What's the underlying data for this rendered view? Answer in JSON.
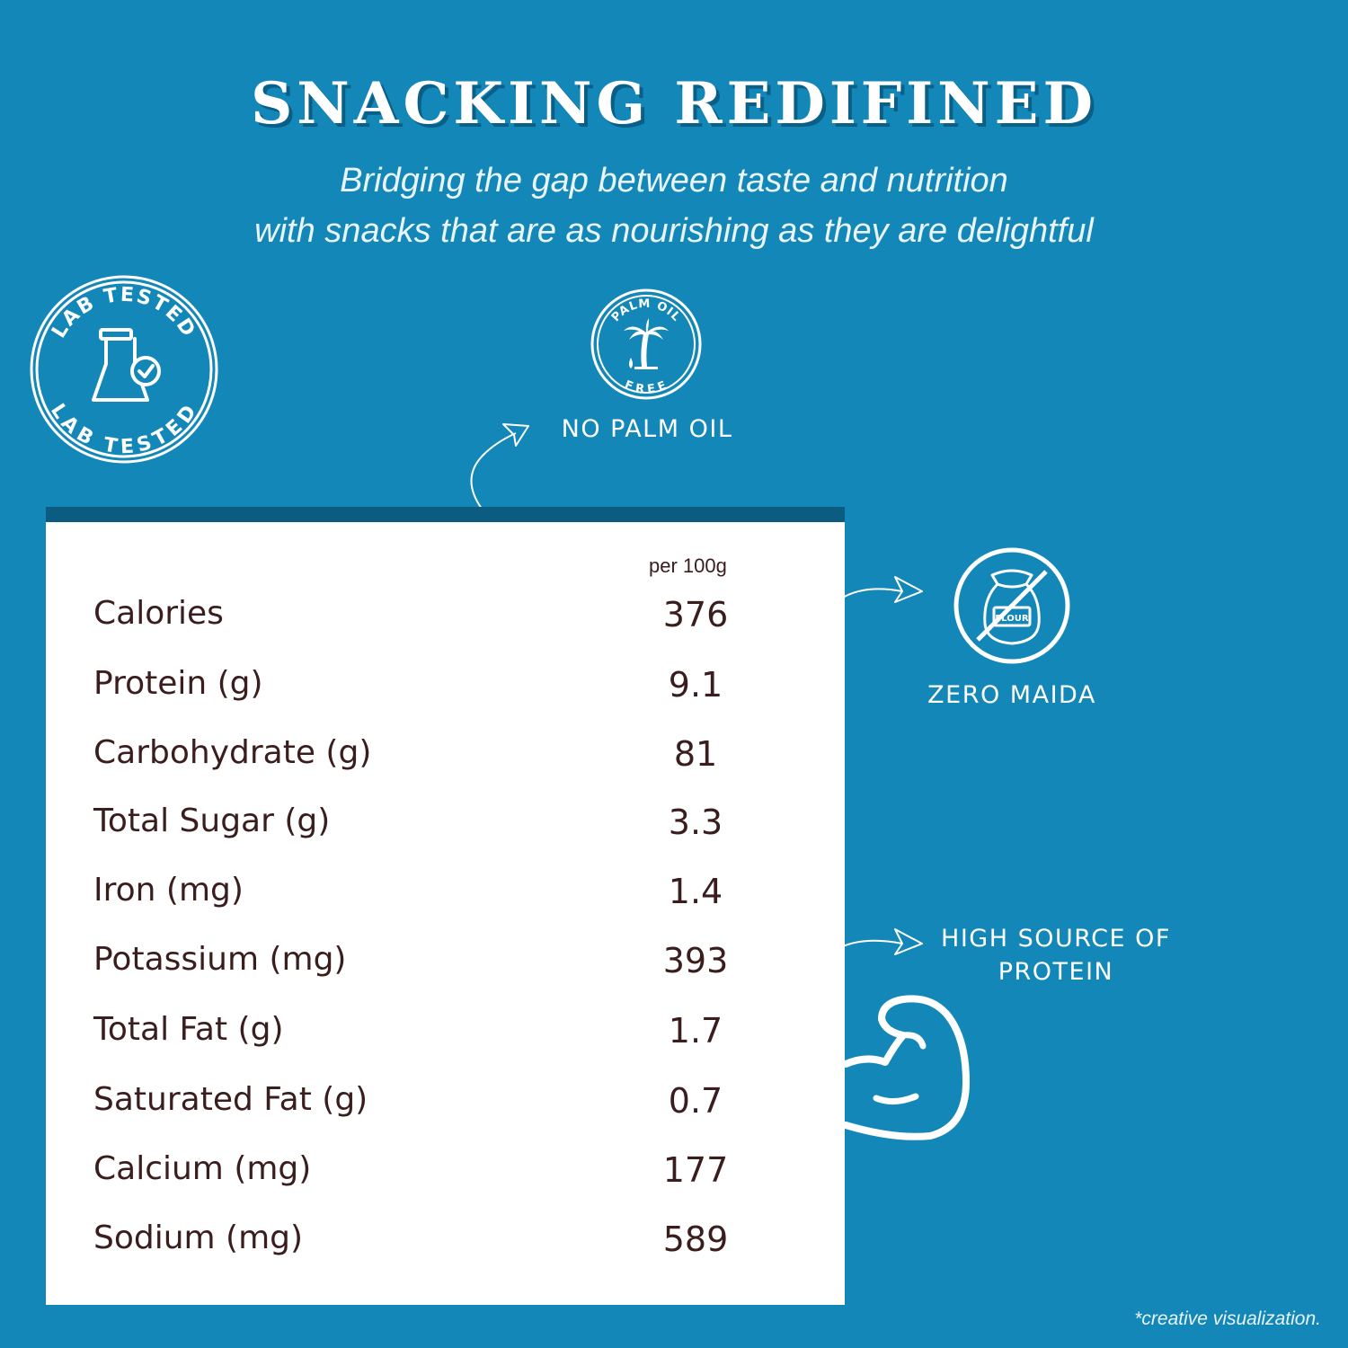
{
  "header": {
    "title": "SNACKING REDIFINED",
    "subtitle_line1": "Bridging the gap between taste and nutrition",
    "subtitle_line2": "with snacks that are as nourishing as they are delightful"
  },
  "badges": {
    "lab_tested": {
      "text": "LAB TESTED",
      "icon": "lab-flask-check-icon"
    },
    "palm_oil": {
      "top_text": "PALM OIL",
      "bottom_text": "FREE",
      "icon": "palm-tree-icon"
    },
    "flour": {
      "text": "FLOUR",
      "icon": "no-flour-icon"
    },
    "muscle": {
      "icon": "flexed-arm-icon"
    }
  },
  "features": {
    "no_palm_oil": "NO PALM OIL",
    "zero_maida": "ZERO MAIDA",
    "protein_line1": "HIGH SOURCE OF",
    "protein_line2": "PROTEIN"
  },
  "nutrition": {
    "column_header": "per 100g",
    "rows": [
      {
        "name": "Calories",
        "value": "376"
      },
      {
        "name": "Protein (g)",
        "value": "9.1"
      },
      {
        "name": "Carbohydrate (g)",
        "value": "81"
      },
      {
        "name": "Total Sugar (g)",
        "value": "3.3"
      },
      {
        "name": "Iron (mg)",
        "value": "1.4"
      },
      {
        "name": "Potassium (mg)",
        "value": "393"
      },
      {
        "name": "Total Fat (g)",
        "value": "1.7"
      },
      {
        "name": "Saturated Fat (g)",
        "value": "0.7"
      },
      {
        "name": "Calcium (mg)",
        "value": "177"
      },
      {
        "name": "Sodium (mg)",
        "value": "589"
      }
    ]
  },
  "footnote": "*creative visualization.",
  "colors": {
    "background": "#1387b8",
    "panel_bar": "#0b5c80",
    "panel": "#ffffff",
    "table_text": "#3a1d1d",
    "title_shadow": "#0a5f86"
  }
}
